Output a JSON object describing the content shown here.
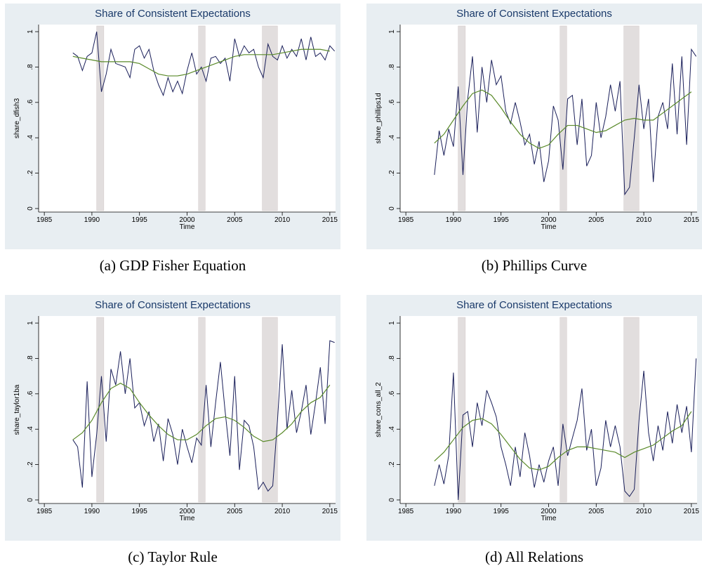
{
  "chart_data": [
    {
      "type": "line",
      "title": "Share of Consistent Expectations",
      "caption": "(a) GDP Fisher Equation",
      "x_label": "Time",
      "y_label": "share_dfish3",
      "xlim": [
        1984.4,
        2015.6
      ],
      "xticks": [
        1985,
        1990,
        1995,
        2000,
        2005,
        2010,
        2015
      ],
      "ylim": [
        -0.02,
        1.04
      ],
      "yticks": [
        0,
        {
          "value": 0.2,
          "label": ".2"
        },
        {
          "value": 0.4,
          "label": ".4"
        },
        {
          "value": 0.6,
          "label": ".6"
        },
        {
          "value": 0.8,
          "label": ".8"
        },
        1
      ],
      "recessions": [
        [
          1990.5,
          1991.25
        ],
        [
          2001.2,
          2001.9
        ],
        [
          2007.9,
          2009.5
        ]
      ],
      "x": [
        1988,
        1988.5,
        1989,
        1989.5,
        1990,
        1990.5,
        1991,
        1991.5,
        1992,
        1992.5,
        1993,
        1993.5,
        1994,
        1994.5,
        1995,
        1995.5,
        1996,
        1996.5,
        1997,
        1997.5,
        1998,
        1998.5,
        1999,
        1999.5,
        2000,
        2000.5,
        2001,
        2001.5,
        2002,
        2002.5,
        2003,
        2003.5,
        2004,
        2004.5,
        2005,
        2005.5,
        2006,
        2006.5,
        2007,
        2007.5,
        2008,
        2008.5,
        2009,
        2009.5,
        2010,
        2010.5,
        2011,
        2011.5,
        2012,
        2012.5,
        2013,
        2013.5,
        2014,
        2014.5,
        2015,
        2015.5
      ],
      "series": [
        {
          "color": "#1a1f5a",
          "values": [
            0.88,
            0.86,
            0.78,
            0.86,
            0.88,
            1.0,
            0.66,
            0.76,
            0.9,
            0.82,
            0.81,
            0.8,
            0.74,
            0.9,
            0.92,
            0.85,
            0.9,
            0.78,
            0.7,
            0.64,
            0.74,
            0.66,
            0.72,
            0.65,
            0.78,
            0.88,
            0.76,
            0.8,
            0.72,
            0.85,
            0.86,
            0.82,
            0.85,
            0.72,
            0.96,
            0.86,
            0.92,
            0.88,
            0.9,
            0.8,
            0.74,
            0.93,
            0.86,
            0.84,
            0.92,
            0.85,
            0.9,
            0.86,
            0.96,
            0.84,
            0.97,
            0.86,
            0.88,
            0.84,
            0.92,
            0.89
          ]
        },
        {
          "color": "#5a8a2a",
          "x": [
            1988,
            1989,
            1990,
            1991,
            1992,
            1993,
            1994,
            1995,
            1996,
            1997,
            1998,
            1999,
            2000,
            2001,
            2002,
            2003,
            2004,
            2005,
            2006,
            2007,
            2008,
            2009,
            2010,
            2011,
            2012,
            2013,
            2014,
            2015
          ],
          "values": [
            0.86,
            0.85,
            0.84,
            0.83,
            0.83,
            0.83,
            0.83,
            0.82,
            0.79,
            0.76,
            0.75,
            0.75,
            0.76,
            0.78,
            0.8,
            0.82,
            0.84,
            0.86,
            0.87,
            0.87,
            0.87,
            0.87,
            0.88,
            0.89,
            0.9,
            0.9,
            0.9,
            0.89
          ]
        }
      ]
    },
    {
      "type": "line",
      "title": "Share of Consistent Expectations",
      "caption": "(b) Phillips Curve",
      "x_label": "Time",
      "y_label": "share_phillips1d",
      "xlim": [
        1984.4,
        2015.6
      ],
      "xticks": [
        1985,
        1990,
        1995,
        2000,
        2005,
        2010,
        2015
      ],
      "ylim": [
        -0.02,
        1.04
      ],
      "yticks": [
        0,
        {
          "value": 0.2,
          "label": ".2"
        },
        {
          "value": 0.4,
          "label": ".4"
        },
        {
          "value": 0.6,
          "label": ".6"
        },
        {
          "value": 0.8,
          "label": ".8"
        },
        1
      ],
      "recessions": [
        [
          1990.5,
          1991.25
        ],
        [
          2001.2,
          2001.9
        ],
        [
          2007.9,
          2009.5
        ]
      ],
      "x": [
        1988,
        1988.5,
        1989,
        1989.5,
        1990,
        1990.5,
        1991,
        1991.5,
        1992,
        1992.5,
        1993,
        1993.5,
        1994,
        1994.5,
        1995,
        1995.5,
        1996,
        1996.5,
        1997,
        1997.5,
        1998,
        1998.5,
        1999,
        1999.5,
        2000,
        2000.5,
        2001,
        2001.5,
        2002,
        2002.5,
        2003,
        2003.5,
        2004,
        2004.5,
        2005,
        2005.5,
        2006,
        2006.5,
        2007,
        2007.5,
        2008,
        2008.5,
        2009,
        2009.5,
        2010,
        2010.5,
        2011,
        2011.5,
        2012,
        2012.5,
        2013,
        2013.5,
        2014,
        2014.5,
        2015,
        2015.5
      ],
      "series": [
        {
          "color": "#1a1f5a",
          "values": [
            0.19,
            0.44,
            0.3,
            0.45,
            0.35,
            0.69,
            0.19,
            0.62,
            0.86,
            0.43,
            0.8,
            0.6,
            0.84,
            0.7,
            0.75,
            0.55,
            0.48,
            0.6,
            0.49,
            0.36,
            0.42,
            0.25,
            0.38,
            0.15,
            0.27,
            0.58,
            0.5,
            0.22,
            0.62,
            0.64,
            0.36,
            0.62,
            0.24,
            0.3,
            0.6,
            0.4,
            0.52,
            0.7,
            0.55,
            0.72,
            0.08,
            0.12,
            0.4,
            0.7,
            0.45,
            0.62,
            0.15,
            0.52,
            0.6,
            0.45,
            0.82,
            0.42,
            0.86,
            0.36,
            0.9,
            0.86
          ]
        },
        {
          "color": "#5a8a2a",
          "x": [
            1988,
            1989,
            1990,
            1991,
            1992,
            1993,
            1994,
            1995,
            1996,
            1997,
            1998,
            1999,
            2000,
            2001,
            2002,
            2003,
            2004,
            2005,
            2006,
            2007,
            2008,
            2009,
            2010,
            2011,
            2012,
            2013,
            2014,
            2015
          ],
          "values": [
            0.37,
            0.42,
            0.5,
            0.58,
            0.65,
            0.67,
            0.64,
            0.57,
            0.49,
            0.42,
            0.37,
            0.34,
            0.36,
            0.42,
            0.47,
            0.47,
            0.45,
            0.43,
            0.44,
            0.47,
            0.5,
            0.51,
            0.5,
            0.5,
            0.54,
            0.58,
            0.62,
            0.66
          ]
        }
      ]
    },
    {
      "type": "line",
      "title": "Share of Consistent Expectations",
      "caption": "(c) Taylor Rule",
      "x_label": "Time",
      "y_label": "share_taylor1ba",
      "xlim": [
        1984.4,
        2015.6
      ],
      "xticks": [
        1985,
        1990,
        1995,
        2000,
        2005,
        2010,
        2015
      ],
      "ylim": [
        -0.02,
        1.04
      ],
      "yticks": [
        0,
        {
          "value": 0.2,
          "label": ".2"
        },
        {
          "value": 0.4,
          "label": ".4"
        },
        {
          "value": 0.6,
          "label": ".6"
        },
        {
          "value": 0.8,
          "label": ".8"
        },
        1
      ],
      "recessions": [
        [
          1990.5,
          1991.25
        ],
        [
          2001.2,
          2001.9
        ],
        [
          2007.9,
          2009.5
        ]
      ],
      "x": [
        1988,
        1988.5,
        1989,
        1989.5,
        1990,
        1990.5,
        1991,
        1991.5,
        1992,
        1992.5,
        1993,
        1993.5,
        1994,
        1994.5,
        1995,
        1995.5,
        1996,
        1996.5,
        1997,
        1997.5,
        1998,
        1998.5,
        1999,
        1999.5,
        2000,
        2000.5,
        2001,
        2001.5,
        2002,
        2002.5,
        2003,
        2003.5,
        2004,
        2004.5,
        2005,
        2005.5,
        2006,
        2006.5,
        2007,
        2007.5,
        2008,
        2008.5,
        2009,
        2009.5,
        2010,
        2010.5,
        2011,
        2011.5,
        2012,
        2012.5,
        2013,
        2013.5,
        2014,
        2014.5,
        2015,
        2015.5
      ],
      "series": [
        {
          "color": "#1a1f5a",
          "values": [
            0.34,
            0.3,
            0.07,
            0.67,
            0.13,
            0.37,
            0.7,
            0.33,
            0.74,
            0.65,
            0.84,
            0.6,
            0.8,
            0.52,
            0.55,
            0.42,
            0.5,
            0.33,
            0.43,
            0.22,
            0.46,
            0.37,
            0.2,
            0.4,
            0.3,
            0.21,
            0.35,
            0.31,
            0.65,
            0.3,
            0.55,
            0.78,
            0.5,
            0.25,
            0.7,
            0.17,
            0.45,
            0.42,
            0.3,
            0.06,
            0.1,
            0.05,
            0.08,
            0.45,
            0.88,
            0.4,
            0.62,
            0.38,
            0.5,
            0.65,
            0.37,
            0.55,
            0.75,
            0.43,
            0.9,
            0.89
          ]
        },
        {
          "color": "#5a8a2a",
          "x": [
            1988,
            1989,
            1990,
            1991,
            1992,
            1993,
            1994,
            1995,
            1996,
            1997,
            1998,
            1999,
            2000,
            2001,
            2002,
            2003,
            2004,
            2005,
            2006,
            2007,
            2008,
            2009,
            2010,
            2011,
            2012,
            2013,
            2014,
            2015
          ],
          "values": [
            0.34,
            0.38,
            0.45,
            0.55,
            0.63,
            0.66,
            0.63,
            0.55,
            0.48,
            0.42,
            0.37,
            0.34,
            0.34,
            0.37,
            0.42,
            0.46,
            0.47,
            0.45,
            0.41,
            0.36,
            0.33,
            0.34,
            0.38,
            0.43,
            0.5,
            0.55,
            0.58,
            0.65
          ]
        }
      ]
    },
    {
      "type": "line",
      "title": "Share of Consistent Expectations",
      "caption": "(d) All Relations",
      "x_label": "Time",
      "y_label": "share_cons_all_2",
      "xlim": [
        1984.4,
        2015.6
      ],
      "xticks": [
        1985,
        1990,
        1995,
        2000,
        2005,
        2010,
        2015
      ],
      "ylim": [
        -0.02,
        1.04
      ],
      "yticks": [
        0,
        {
          "value": 0.2,
          "label": ".2"
        },
        {
          "value": 0.4,
          "label": ".4"
        },
        {
          "value": 0.6,
          "label": ".6"
        },
        {
          "value": 0.8,
          "label": ".8"
        },
        1
      ],
      "recessions": [
        [
          1990.5,
          1991.25
        ],
        [
          2001.2,
          2001.9
        ],
        [
          2007.9,
          2009.5
        ]
      ],
      "x": [
        1988,
        1988.5,
        1989,
        1989.5,
        1990,
        1990.5,
        1991,
        1991.5,
        1992,
        1992.5,
        1993,
        1993.5,
        1994,
        1994.5,
        1995,
        1995.5,
        1996,
        1996.5,
        1997,
        1997.5,
        1998,
        1998.5,
        1999,
        1999.5,
        2000,
        2000.5,
        2001,
        2001.5,
        2002,
        2002.5,
        2003,
        2003.5,
        2004,
        2004.5,
        2005,
        2005.5,
        2006,
        2006.5,
        2007,
        2007.5,
        2008,
        2008.5,
        2009,
        2009.5,
        2010,
        2010.5,
        2011,
        2011.5,
        2012,
        2012.5,
        2013,
        2013.5,
        2014,
        2014.5,
        2015,
        2015.5
      ],
      "series": [
        {
          "color": "#1a1f5a",
          "values": [
            0.08,
            0.2,
            0.09,
            0.25,
            0.72,
            0,
            0.48,
            0.5,
            0.3,
            0.55,
            0.42,
            0.62,
            0.55,
            0.47,
            0.3,
            0.2,
            0.08,
            0.3,
            0.13,
            0.38,
            0.25,
            0.07,
            0.2,
            0.1,
            0.22,
            0.3,
            0.08,
            0.43,
            0.25,
            0.35,
            0.45,
            0.63,
            0.28,
            0.4,
            0.08,
            0.18,
            0.45,
            0.3,
            0.42,
            0.3,
            0.05,
            0.02,
            0.06,
            0.45,
            0.73,
            0.38,
            0.22,
            0.42,
            0.28,
            0.5,
            0.32,
            0.54,
            0.38,
            0.53,
            0.27,
            0.8
          ]
        },
        {
          "color": "#5a8a2a",
          "x": [
            1988,
            1989,
            1990,
            1991,
            1992,
            1993,
            1994,
            1995,
            1996,
            1997,
            1998,
            1999,
            2000,
            2001,
            2002,
            2003,
            2004,
            2005,
            2006,
            2007,
            2008,
            2009,
            2010,
            2011,
            2012,
            2013,
            2014,
            2015
          ],
          "values": [
            0.22,
            0.27,
            0.34,
            0.41,
            0.45,
            0.46,
            0.43,
            0.37,
            0.3,
            0.23,
            0.18,
            0.17,
            0.19,
            0.24,
            0.28,
            0.3,
            0.3,
            0.29,
            0.28,
            0.27,
            0.24,
            0.27,
            0.29,
            0.31,
            0.35,
            0.39,
            0.42,
            0.5
          ]
        }
      ]
    }
  ]
}
